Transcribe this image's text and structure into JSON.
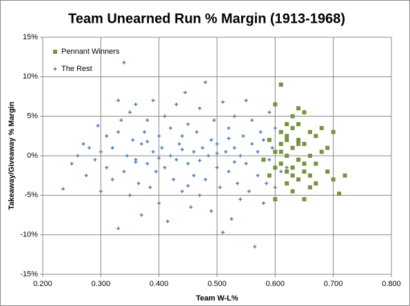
{
  "chart_data": {
    "type": "scatter",
    "title": "Team Unearned Run % Margin (1913-1968)",
    "x_label": "Team W-L%",
    "y_label": "Takeaway/Giveaway  % Margin",
    "xlim": [
      0.2,
      0.8
    ],
    "xticks": [
      {
        "value": 0.2,
        "label": "0.200"
      },
      {
        "value": 0.3,
        "label": "0.300"
      },
      {
        "value": 0.4,
        "label": "0.400"
      },
      {
        "value": 0.5,
        "label": "0.500"
      },
      {
        "value": 0.6,
        "label": "0.600"
      },
      {
        "value": 0.7,
        "label": "0.700"
      },
      {
        "value": 0.8,
        "label": "0.800"
      }
    ],
    "ylim": [
      -15,
      15
    ],
    "yticks": [
      {
        "value": -15,
        "label": "-15%"
      },
      {
        "value": -10,
        "label": "-10%"
      },
      {
        "value": -5,
        "label": "-5%"
      },
      {
        "value": 0,
        "label": "0%"
      },
      {
        "value": 5,
        "label": "5%"
      },
      {
        "value": 10,
        "label": "10%"
      },
      {
        "value": 15,
        "label": "15%"
      }
    ],
    "grid": true,
    "legend": "top-left",
    "series": [
      {
        "name": "Pennant Winners",
        "color": "#77933c",
        "x": [
          0.58,
          0.59,
          0.59,
          0.6,
          0.6,
          0.6,
          0.61,
          0.61,
          0.61,
          0.61,
          0.62,
          0.62,
          0.62,
          0.62,
          0.62,
          0.63,
          0.63,
          0.63,
          0.63,
          0.63,
          0.64,
          0.64,
          0.64,
          0.64,
          0.64,
          0.65,
          0.65,
          0.65,
          0.65,
          0.66,
          0.66,
          0.66,
          0.66,
          0.67,
          0.67,
          0.67,
          0.68,
          0.68,
          0.69,
          0.69,
          0.7,
          0.7,
          0.71,
          0.72,
          0.6,
          0.61,
          0.63,
          0.64,
          0.62,
          0.65
        ],
        "values": [
          -0.5,
          2.0,
          -2.5,
          0.5,
          6.5,
          -5.5,
          9.0,
          1.5,
          -1.0,
          3.0,
          4.0,
          -2.0,
          0.0,
          2.5,
          -3.5,
          5.0,
          1.0,
          -1.5,
          3.5,
          -4.5,
          6.0,
          2.0,
          -0.5,
          4.0,
          -3.0,
          5.5,
          1.5,
          -2.0,
          -5.5,
          3.0,
          0.0,
          -2.5,
          -4.0,
          2.5,
          -1.0,
          -3.5,
          3.5,
          0.5,
          1.0,
          -2.0,
          3.0,
          -3.0,
          -4.8,
          -2.5,
          -1.5,
          0.5,
          -2.5,
          1.5,
          2.0,
          -1.0
        ]
      },
      {
        "name": "The Rest",
        "color": "#4f81bd",
        "x": [
          0.235,
          0.25,
          0.26,
          0.27,
          0.275,
          0.28,
          0.29,
          0.295,
          0.3,
          0.3,
          0.31,
          0.31,
          0.32,
          0.32,
          0.33,
          0.33,
          0.335,
          0.34,
          0.34,
          0.345,
          0.35,
          0.35,
          0.355,
          0.36,
          0.36,
          0.365,
          0.37,
          0.37,
          0.375,
          0.38,
          0.38,
          0.385,
          0.39,
          0.39,
          0.395,
          0.4,
          0.4,
          0.405,
          0.41,
          0.41,
          0.415,
          0.42,
          0.42,
          0.425,
          0.43,
          0.43,
          0.435,
          0.44,
          0.44,
          0.445,
          0.45,
          0.45,
          0.455,
          0.46,
          0.46,
          0.465,
          0.47,
          0.47,
          0.475,
          0.48,
          0.48,
          0.485,
          0.49,
          0.49,
          0.495,
          0.5,
          0.5,
          0.505,
          0.51,
          0.51,
          0.515,
          0.52,
          0.52,
          0.525,
          0.53,
          0.53,
          0.535,
          0.54,
          0.54,
          0.545,
          0.55,
          0.55,
          0.555,
          0.56,
          0.56,
          0.565,
          0.57,
          0.57,
          0.575,
          0.58,
          0.58,
          0.585,
          0.59,
          0.59,
          0.595,
          0.6,
          0.6,
          0.61,
          0.61,
          0.62,
          0.33,
          0.36,
          0.4,
          0.44,
          0.47,
          0.5,
          0.53,
          0.38,
          0.45,
          0.52
        ],
        "values": [
          -4.2,
          -1,
          0,
          1.5,
          -2.5,
          1,
          -0.5,
          3.8,
          -4.5,
          0.5,
          2.5,
          -1.5,
          -3,
          1,
          7,
          -9.2,
          4.5,
          11.8,
          -2,
          0,
          5.5,
          -5,
          2,
          -0.5,
          6.5,
          -3.5,
          1.5,
          -7.5,
          3,
          -1,
          4.5,
          -4,
          0.5,
          7,
          -2,
          2.5,
          -6,
          1,
          -1.5,
          5,
          -8.3,
          0,
          3.5,
          -3,
          6.5,
          -0.5,
          1.5,
          -4.5,
          2.5,
          8,
          -1,
          4,
          -6.5,
          0.5,
          -2.5,
          3,
          -5,
          6,
          1,
          -3,
          9.3,
          0,
          2,
          -7,
          4.5,
          -1.5,
          1.5,
          -4,
          6.8,
          -9.7,
          0.5,
          3.5,
          -2,
          -8,
          1,
          5,
          -3.5,
          0,
          -5.5,
          2.5,
          7,
          -1,
          -4.5,
          1.5,
          4.5,
          -11.5,
          -2.5,
          0.5,
          3,
          -6,
          2,
          -3.5,
          5.5,
          -0.5,
          1,
          -4,
          3.5,
          -2,
          0.5,
          -1.5,
          3,
          -0.8,
          -0.3,
          0.8,
          -0.6,
          0.3,
          -0.8,
          1.8,
          -3.8,
          2.2
        ]
      }
    ]
  }
}
